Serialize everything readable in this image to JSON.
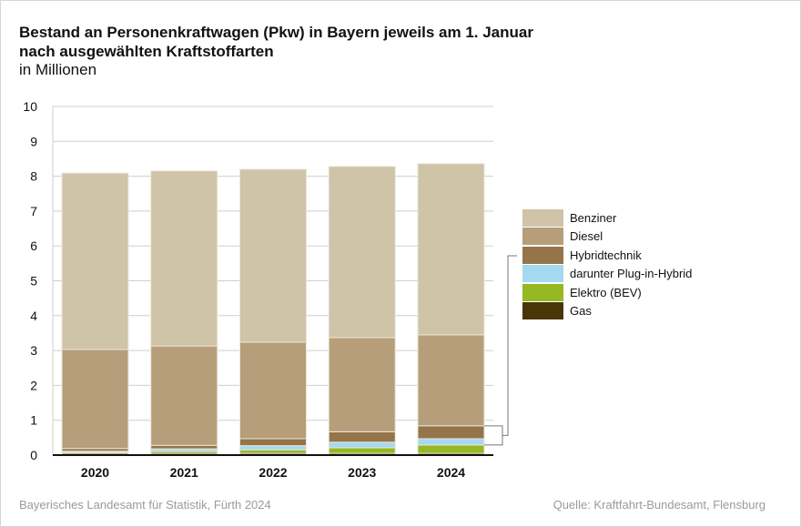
{
  "title_line1": "Bestand an Personenkraftwagen (Pkw) in Bayern jeweils am 1. Januar",
  "title_line2": "nach ausgewählten Kraftstoffarten",
  "subtitle": "in Millionen",
  "footer_left": "Bayerisches Landesamt für Statistik, Fürth 2024",
  "footer_right": "Quelle: Kraftfahrt-Bundesamt, Flensburg",
  "chart_data": {
    "type": "bar",
    "stacked": true,
    "title": "Bestand an Personenkraftwagen (Pkw) in Bayern jeweils am 1. Januar nach ausgewählten Kraftstoffarten",
    "ylabel": "in Millionen",
    "ylim": [
      0,
      10
    ],
    "yticks": [
      "0",
      "1",
      "2",
      "3",
      "4",
      "5",
      "6",
      "7",
      "8",
      "9",
      "10"
    ],
    "grid": true,
    "legend_position": "right",
    "categories": [
      "2020",
      "2021",
      "2022",
      "2023",
      "2024"
    ],
    "series": [
      {
        "name": "BenzIner",
        "label": "Benziner",
        "color": "#cfc3a8",
        "values": [
          5.06,
          5.02,
          4.96,
          4.91,
          4.91
        ]
      },
      {
        "name": "Diesel",
        "label": "Diesel",
        "color": "#b59e79",
        "values": [
          2.84,
          2.85,
          2.77,
          2.7,
          2.61
        ]
      },
      {
        "name": "Hybridtechnik",
        "label": "Hybridtechnik",
        "color": "#94744a",
        "values": [
          0.11,
          0.17,
          0.32,
          0.46,
          0.55
        ]
      },
      {
        "name": "darunter Plug-in-Hybrid",
        "label": "darunter Plug-in-Hybrid",
        "color": "#a5d9ef",
        "values": [
          0.03,
          0.07,
          0.12,
          0.16,
          0.18
        ]
      },
      {
        "name": "Elektro (BEV)",
        "label": "Elektro (BEV)",
        "color": "#95b823",
        "values": [
          0.03,
          0.06,
          0.1,
          0.16,
          0.24
        ]
      },
      {
        "name": "Gas",
        "label": "Gas",
        "color": "#4a3506",
        "values": [
          0.05,
          0.05,
          0.05,
          0.05,
          0.05
        ]
      }
    ]
  }
}
